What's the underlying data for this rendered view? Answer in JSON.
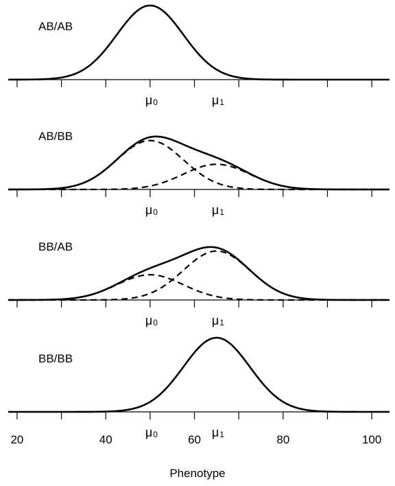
{
  "chart_data": {
    "type": "line",
    "xlabel": "Phenotype",
    "xlim": [
      18,
      104
    ],
    "tick_values": [
      20,
      30,
      40,
      50,
      60,
      70,
      80,
      90,
      100
    ],
    "tick_labels": [
      "20",
      "40",
      "60",
      "80",
      "100"
    ],
    "tick_label_values": [
      20,
      40,
      60,
      80,
      100
    ],
    "mu": [
      {
        "symbol": "μ",
        "subscript": "0",
        "value": 50
      },
      {
        "symbol": "μ",
        "subscript": "1",
        "value": 65
      }
    ],
    "sd": 7.5,
    "panels": [
      {
        "label": "AB/AB",
        "weights": [
          1.0,
          0.0
        ],
        "show_components": false,
        "tick_labels_shown": false
      },
      {
        "label": "AB/BB",
        "weights": [
          0.66,
          0.34
        ],
        "show_components": true,
        "tick_labels_shown": false
      },
      {
        "label": "BB/AB",
        "weights": [
          0.34,
          0.66
        ],
        "show_components": true,
        "tick_labels_shown": false
      },
      {
        "label": "BB/BB",
        "weights": [
          0.0,
          1.0
        ],
        "show_components": false,
        "tick_labels_shown": true
      }
    ]
  }
}
